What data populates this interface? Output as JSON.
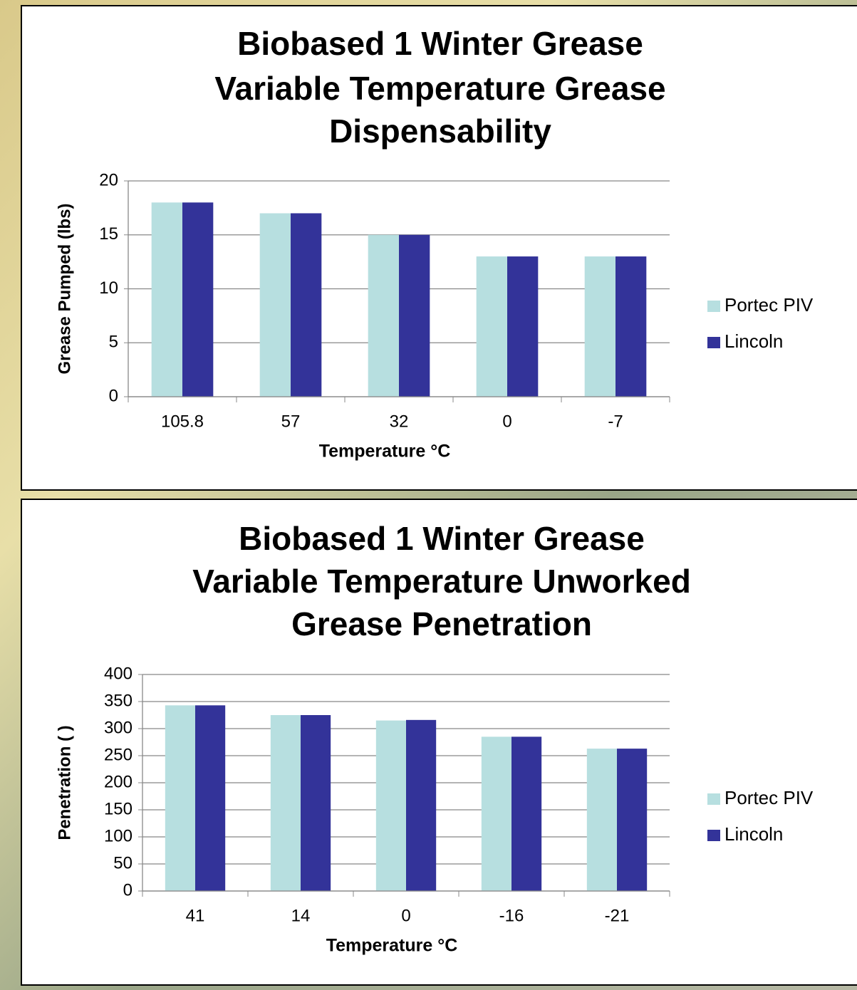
{
  "chart_data": [
    {
      "type": "bar",
      "title": [
        "Biobased 1 Winter Grease",
        "Variable Temperature Grease",
        "Dispensability"
      ],
      "x_label": "Temperature °C",
      "y_label": "Grease Pumped (lbs)",
      "categories": [
        "105.8",
        "57",
        "32",
        "0",
        "-7"
      ],
      "series": [
        {
          "name": "Portec PIV",
          "color": "#b7dfe0",
          "values": [
            18,
            17,
            15,
            13,
            13
          ]
        },
        {
          "name": "Lincoln",
          "color": "#333399",
          "values": [
            18,
            17,
            15,
            13,
            13
          ]
        }
      ],
      "ylim": [
        0,
        20
      ],
      "yticks": [
        0,
        5,
        10,
        15,
        20
      ],
      "grid": true,
      "legend": "right"
    },
    {
      "type": "bar",
      "title": [
        "Biobased 1 Winter Grease",
        "Variable Temperature Unworked",
        "Grease Penetration"
      ],
      "x_label": "Temperature °C",
      "y_label": "Penetration (  )",
      "categories": [
        "41",
        "14",
        "0",
        "-16",
        "-21"
      ],
      "series": [
        {
          "name": "Portec PIV",
          "color": "#b7dfe0",
          "values": [
            343,
            325,
            315,
            285,
            263
          ]
        },
        {
          "name": "Lincoln",
          "color": "#333399",
          "values": [
            343,
            325,
            316,
            285,
            263
          ]
        }
      ],
      "ylim": [
        0,
        400
      ],
      "yticks": [
        0,
        50,
        100,
        150,
        200,
        250,
        300,
        350,
        400
      ],
      "grid": true,
      "legend": "right"
    }
  ]
}
